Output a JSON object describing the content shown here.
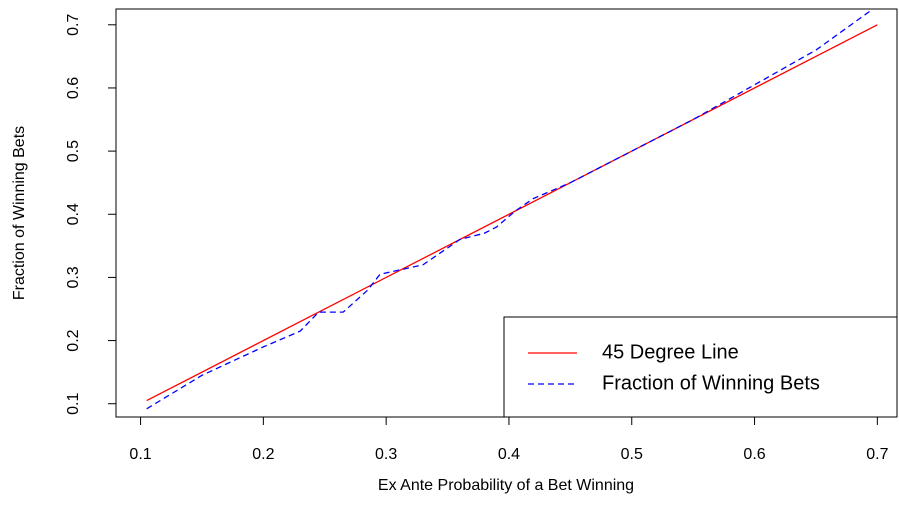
{
  "chart_data": {
    "type": "line",
    "x_label": "Ex Ante Probability of a Bet Winning",
    "y_label": "Fraction of Winning Bets",
    "xlim": [
      0.08,
      0.716
    ],
    "ylim": [
      0.079,
      0.725
    ],
    "xticks": [
      0.1,
      0.2,
      0.3,
      0.4,
      0.5,
      0.6,
      0.7
    ],
    "yticks": [
      0.1,
      0.2,
      0.3,
      0.4,
      0.5,
      0.6,
      0.7
    ],
    "legend": "bottomright",
    "series": [
      {
        "name": "45 Degree Line",
        "color": "#ff0000",
        "dash": false,
        "x": [
          0.105,
          0.7
        ],
        "values": [
          0.105,
          0.7
        ]
      },
      {
        "name": "Fraction of Winning Bets",
        "color": "#0000ff",
        "dash": true,
        "x": [
          0.105,
          0.15,
          0.2,
          0.23,
          0.245,
          0.265,
          0.285,
          0.295,
          0.33,
          0.36,
          0.38,
          0.39,
          0.405,
          0.42,
          0.45,
          0.5,
          0.55,
          0.6,
          0.65,
          0.7
        ],
        "values": [
          0.092,
          0.145,
          0.19,
          0.215,
          0.245,
          0.245,
          0.28,
          0.305,
          0.32,
          0.36,
          0.37,
          0.38,
          0.405,
          0.425,
          0.45,
          0.5,
          0.55,
          0.605,
          0.66,
          0.73
        ]
      }
    ]
  }
}
